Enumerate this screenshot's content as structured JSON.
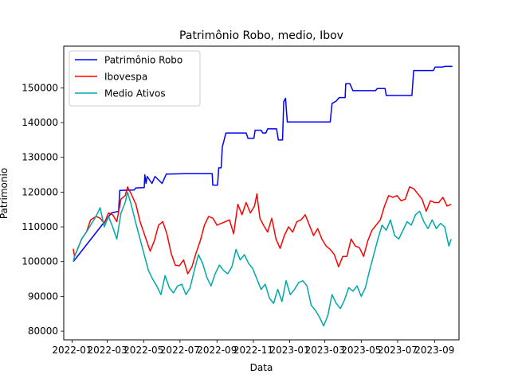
{
  "chart_data": {
    "type": "line",
    "title": "Patrimônio Robo, medio, Ibov",
    "xlabel": "Data",
    "ylabel": "Patrimonio",
    "x_ticks": [
      "2022-01",
      "2022-03",
      "2022-05",
      "2022-07",
      "2022-09",
      "2022-11",
      "2023-01",
      "2023-03",
      "2023-05",
      "2023-07",
      "2023-09"
    ],
    "x_range": [
      "2021-12-18",
      "2023-10-12"
    ],
    "y_ticks": [
      80000,
      90000,
      100000,
      110000,
      120000,
      130000,
      140000,
      150000
    ],
    "ylim": [
      77500,
      162000
    ],
    "grid": false,
    "legend_position": "top-left",
    "series": [
      {
        "name": "Patrimônio Robo",
        "color": "#0000ff",
        "points": [
          [
            "2022-01-03",
            100000
          ],
          [
            "2022-03-08",
            114000
          ],
          [
            "2022-03-20",
            114500
          ],
          [
            "2022-03-22",
            120500
          ],
          [
            "2022-04-15",
            120600
          ],
          [
            "2022-04-18",
            121200
          ],
          [
            "2022-05-02",
            121300
          ],
          [
            "2022-05-03",
            125000
          ],
          [
            "2022-05-05",
            122500
          ],
          [
            "2022-05-07",
            124500
          ],
          [
            "2022-05-15",
            122500
          ],
          [
            "2022-05-20",
            124500
          ],
          [
            "2022-06-01",
            122500
          ],
          [
            "2022-06-08",
            125200
          ],
          [
            "2022-07-10",
            125300
          ],
          [
            "2022-08-24",
            125300
          ],
          [
            "2022-08-25",
            122000
          ],
          [
            "2022-09-02",
            122000
          ],
          [
            "2022-09-04",
            127000
          ],
          [
            "2022-09-08",
            127000
          ],
          [
            "2022-09-10",
            133000
          ],
          [
            "2022-09-13",
            135000
          ],
          [
            "2022-09-16",
            137000
          ],
          [
            "2022-10-20",
            137000
          ],
          [
            "2022-10-23",
            135500
          ],
          [
            "2022-11-02",
            135500
          ],
          [
            "2022-11-04",
            137800
          ],
          [
            "2022-11-14",
            137800
          ],
          [
            "2022-11-17",
            137000
          ],
          [
            "2022-11-22",
            137000
          ],
          [
            "2022-11-25",
            138200
          ],
          [
            "2022-12-10",
            138200
          ],
          [
            "2022-12-13",
            135000
          ],
          [
            "2022-12-20",
            135000
          ],
          [
            "2022-12-22",
            146000
          ],
          [
            "2022-12-25",
            147000
          ],
          [
            "2022-12-28",
            140200
          ],
          [
            "2023-03-10",
            140200
          ],
          [
            "2023-03-13",
            145500
          ],
          [
            "2023-03-20",
            146200
          ],
          [
            "2023-03-25",
            147200
          ],
          [
            "2023-04-04",
            147200
          ],
          [
            "2023-04-05",
            151200
          ],
          [
            "2023-04-12",
            151200
          ],
          [
            "2023-04-17",
            149200
          ],
          [
            "2023-05-25",
            149200
          ],
          [
            "2023-05-28",
            149800
          ],
          [
            "2023-06-10",
            149800
          ],
          [
            "2023-06-12",
            147800
          ],
          [
            "2023-07-25",
            147800
          ],
          [
            "2023-07-28",
            155000
          ],
          [
            "2023-08-30",
            155000
          ],
          [
            "2023-09-02",
            156000
          ],
          [
            "2023-09-15",
            156000
          ],
          [
            "2023-09-18",
            156200
          ],
          [
            "2023-10-01",
            156200
          ]
        ]
      },
      {
        "name": "Ibovespa",
        "color": "#ff0000",
        "points": [
          [
            "2022-01-03",
            103700
          ],
          [
            "2022-01-05",
            101500
          ],
          [
            "2022-01-10",
            103500
          ],
          [
            "2022-01-17",
            106500
          ],
          [
            "2022-01-25",
            108500
          ],
          [
            "2022-02-01",
            112000
          ],
          [
            "2022-02-10",
            113000
          ],
          [
            "2022-02-17",
            112500
          ],
          [
            "2022-02-24",
            111000
          ],
          [
            "2022-03-03",
            114000
          ],
          [
            "2022-03-10",
            113500
          ],
          [
            "2022-03-17",
            111500
          ],
          [
            "2022-03-24",
            118000
          ],
          [
            "2022-03-31",
            119000
          ],
          [
            "2022-04-04",
            121500
          ],
          [
            "2022-04-10",
            119500
          ],
          [
            "2022-04-18",
            116500
          ],
          [
            "2022-04-25",
            111500
          ],
          [
            "2022-05-02",
            108000
          ],
          [
            "2022-05-09",
            104500
          ],
          [
            "2022-05-12",
            103000
          ],
          [
            "2022-05-19",
            106000
          ],
          [
            "2022-05-26",
            110500
          ],
          [
            "2022-06-02",
            111500
          ],
          [
            "2022-06-09",
            108000
          ],
          [
            "2022-06-16",
            102500
          ],
          [
            "2022-06-23",
            99000
          ],
          [
            "2022-06-30",
            98800
          ],
          [
            "2022-07-07",
            100500
          ],
          [
            "2022-07-14",
            96500
          ],
          [
            "2022-07-21",
            98500
          ],
          [
            "2022-07-28",
            102500
          ],
          [
            "2022-08-04",
            106000
          ],
          [
            "2022-08-11",
            110500
          ],
          [
            "2022-08-18",
            113000
          ],
          [
            "2022-08-25",
            112500
          ],
          [
            "2022-09-01",
            110500
          ],
          [
            "2022-09-08",
            111000
          ],
          [
            "2022-09-15",
            111500
          ],
          [
            "2022-09-22",
            112000
          ],
          [
            "2022-09-29",
            108000
          ],
          [
            "2022-10-06",
            116500
          ],
          [
            "2022-10-13",
            113500
          ],
          [
            "2022-10-20",
            117000
          ],
          [
            "2022-10-27",
            114000
          ],
          [
            "2022-11-03",
            116000
          ],
          [
            "2022-11-07",
            119500
          ],
          [
            "2022-11-12",
            112500
          ],
          [
            "2022-11-18",
            110500
          ],
          [
            "2022-11-25",
            108500
          ],
          [
            "2022-12-02",
            112500
          ],
          [
            "2022-12-09",
            106500
          ],
          [
            "2022-12-16",
            103800
          ],
          [
            "2022-12-23",
            107500
          ],
          [
            "2022-12-30",
            110000
          ],
          [
            "2023-01-06",
            108500
          ],
          [
            "2023-01-13",
            111500
          ],
          [
            "2023-01-20",
            112000
          ],
          [
            "2023-01-27",
            113500
          ],
          [
            "2023-02-03",
            110500
          ],
          [
            "2023-02-10",
            107500
          ],
          [
            "2023-02-17",
            109500
          ],
          [
            "2023-02-24",
            106500
          ],
          [
            "2023-03-03",
            104500
          ],
          [
            "2023-03-10",
            103500
          ],
          [
            "2023-03-17",
            102000
          ],
          [
            "2023-03-24",
            98500
          ],
          [
            "2023-03-31",
            101500
          ],
          [
            "2023-04-07",
            101500
          ],
          [
            "2023-04-14",
            106500
          ],
          [
            "2023-04-21",
            104500
          ],
          [
            "2023-04-28",
            104000
          ],
          [
            "2023-05-05",
            101500
          ],
          [
            "2023-05-12",
            106000
          ],
          [
            "2023-05-19",
            109000
          ],
          [
            "2023-05-26",
            110500
          ],
          [
            "2023-06-02",
            112000
          ],
          [
            "2023-06-09",
            116000
          ],
          [
            "2023-06-16",
            119000
          ],
          [
            "2023-06-23",
            118500
          ],
          [
            "2023-06-30",
            119000
          ],
          [
            "2023-07-07",
            117500
          ],
          [
            "2023-07-14",
            118000
          ],
          [
            "2023-07-21",
            121500
          ],
          [
            "2023-07-28",
            121000
          ],
          [
            "2023-08-04",
            119500
          ],
          [
            "2023-08-11",
            118000
          ],
          [
            "2023-08-18",
            114500
          ],
          [
            "2023-08-25",
            117500
          ],
          [
            "2023-09-01",
            117000
          ],
          [
            "2023-09-08",
            117000
          ],
          [
            "2023-09-15",
            118500
          ],
          [
            "2023-09-22",
            116000
          ],
          [
            "2023-09-29",
            116500
          ]
        ]
      },
      {
        "name": "Medio Ativos",
        "color": "#00a8a8",
        "points": [
          [
            "2022-01-03",
            100000
          ],
          [
            "2022-01-05",
            101500
          ],
          [
            "2022-01-10",
            103500
          ],
          [
            "2022-01-17",
            106500
          ],
          [
            "2022-01-25",
            108500
          ],
          [
            "2022-02-01",
            110500
          ],
          [
            "2022-02-10",
            113000
          ],
          [
            "2022-02-17",
            115500
          ],
          [
            "2022-02-24",
            110000
          ],
          [
            "2022-03-03",
            113000
          ],
          [
            "2022-03-10",
            110000
          ],
          [
            "2022-03-17",
            106500
          ],
          [
            "2022-03-24",
            114000
          ],
          [
            "2022-03-31",
            117000
          ],
          [
            "2022-04-04",
            120000
          ],
          [
            "2022-04-10",
            116500
          ],
          [
            "2022-04-18",
            111000
          ],
          [
            "2022-04-25",
            106500
          ],
          [
            "2022-05-02",
            102000
          ],
          [
            "2022-05-09",
            97500
          ],
          [
            "2022-05-16",
            95000
          ],
          [
            "2022-05-23",
            93000
          ],
          [
            "2022-05-30",
            90500
          ],
          [
            "2022-06-06",
            96000
          ],
          [
            "2022-06-13",
            92500
          ],
          [
            "2022-06-20",
            91000
          ],
          [
            "2022-06-27",
            93000
          ],
          [
            "2022-07-04",
            93500
          ],
          [
            "2022-07-11",
            90500
          ],
          [
            "2022-07-18",
            92500
          ],
          [
            "2022-07-25",
            97500
          ],
          [
            "2022-08-01",
            102000
          ],
          [
            "2022-08-08",
            99500
          ],
          [
            "2022-08-15",
            95500
          ],
          [
            "2022-08-22",
            93000
          ],
          [
            "2022-08-29",
            96500
          ],
          [
            "2022-09-05",
            99000
          ],
          [
            "2022-09-12",
            97500
          ],
          [
            "2022-09-19",
            96500
          ],
          [
            "2022-09-26",
            98500
          ],
          [
            "2022-10-03",
            103500
          ],
          [
            "2022-10-10",
            100500
          ],
          [
            "2022-10-17",
            102000
          ],
          [
            "2022-10-24",
            99500
          ],
          [
            "2022-10-31",
            98000
          ],
          [
            "2022-11-07",
            95000
          ],
          [
            "2022-11-14",
            92000
          ],
          [
            "2022-11-21",
            93500
          ],
          [
            "2022-11-28",
            89500
          ],
          [
            "2022-12-05",
            88000
          ],
          [
            "2022-12-12",
            92000
          ],
          [
            "2022-12-19",
            88500
          ],
          [
            "2022-12-26",
            94500
          ],
          [
            "2023-01-02",
            90500
          ],
          [
            "2023-01-09",
            92000
          ],
          [
            "2023-01-16",
            94000
          ],
          [
            "2023-01-23",
            94500
          ],
          [
            "2023-01-30",
            93000
          ],
          [
            "2023-02-06",
            87500
          ],
          [
            "2023-02-13",
            86000
          ],
          [
            "2023-02-20",
            84000
          ],
          [
            "2023-02-27",
            81500
          ],
          [
            "2023-03-06",
            84500
          ],
          [
            "2023-03-13",
            90500
          ],
          [
            "2023-03-20",
            88000
          ],
          [
            "2023-03-27",
            86500
          ],
          [
            "2023-04-03",
            89000
          ],
          [
            "2023-04-10",
            92500
          ],
          [
            "2023-04-17",
            91500
          ],
          [
            "2023-04-24",
            93000
          ],
          [
            "2023-05-01",
            90000
          ],
          [
            "2023-05-08",
            92500
          ],
          [
            "2023-05-15",
            97500
          ],
          [
            "2023-05-22",
            102000
          ],
          [
            "2023-05-29",
            106500
          ],
          [
            "2023-06-05",
            110500
          ],
          [
            "2023-06-12",
            109000
          ],
          [
            "2023-06-19",
            112000
          ],
          [
            "2023-06-26",
            107500
          ],
          [
            "2023-07-03",
            106500
          ],
          [
            "2023-07-10",
            109000
          ],
          [
            "2023-07-17",
            111500
          ],
          [
            "2023-07-24",
            110500
          ],
          [
            "2023-07-31",
            113500
          ],
          [
            "2023-08-07",
            114500
          ],
          [
            "2023-08-14",
            111500
          ],
          [
            "2023-08-21",
            109500
          ],
          [
            "2023-08-28",
            112000
          ],
          [
            "2023-09-04",
            109500
          ],
          [
            "2023-09-11",
            111000
          ],
          [
            "2023-09-18",
            110000
          ],
          [
            "2023-09-25",
            104500
          ],
          [
            "2023-09-29",
            106500
          ]
        ]
      }
    ]
  }
}
